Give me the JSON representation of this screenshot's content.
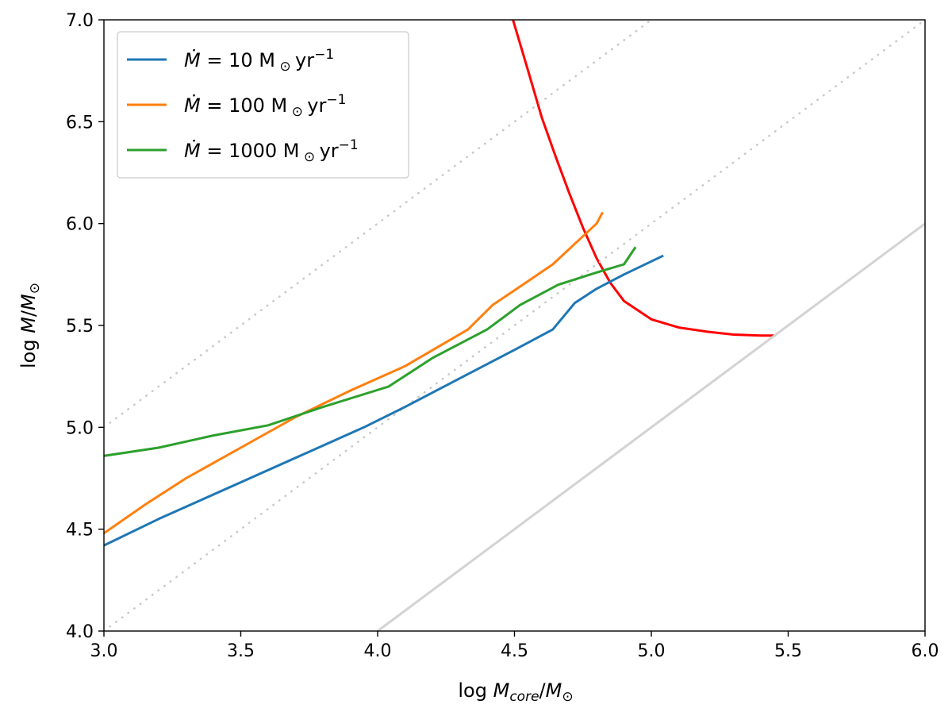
{
  "chart_data": {
    "type": "line",
    "xlabel": "log M_core/M_⊙",
    "ylabel": "log M/M_⊙",
    "xlim": [
      3.0,
      6.0
    ],
    "ylim": [
      4.0,
      7.0
    ],
    "xticks": [
      "3.0",
      "3.5",
      "4.0",
      "4.5",
      "5.0",
      "5.5",
      "6.0"
    ],
    "yticks": [
      "4.0",
      "4.5",
      "5.0",
      "5.5",
      "6.0",
      "6.5",
      "7.0"
    ],
    "legend_position": "top-left",
    "series": [
      {
        "name": "Ṁ = 10 M⊙ yr⁻¹",
        "legend": {
          "prefix": "= 10 M",
          "unit": "yr",
          "exp": "−1"
        },
        "color": "#1f77b4",
        "x": [
          3.0,
          3.2,
          3.5,
          3.75,
          3.95,
          4.1,
          4.3,
          4.5,
          4.64,
          4.72,
          4.8,
          4.9,
          5.04
        ],
        "y": [
          4.42,
          4.55,
          4.73,
          4.88,
          5.0,
          5.1,
          5.24,
          5.38,
          5.48,
          5.61,
          5.68,
          5.75,
          5.84
        ]
      },
      {
        "name": "Ṁ = 100 M⊙ yr⁻¹",
        "legend": {
          "prefix": "= 100 M",
          "unit": "yr",
          "exp": "−1"
        },
        "color": "#ff7f0e",
        "x": [
          3.0,
          3.15,
          3.3,
          3.5,
          3.7,
          3.9,
          4.1,
          4.33,
          4.42,
          4.53,
          4.64,
          4.72,
          4.8,
          4.82
        ],
        "y": [
          4.48,
          4.62,
          4.75,
          4.9,
          5.05,
          5.18,
          5.3,
          5.48,
          5.6,
          5.7,
          5.8,
          5.9,
          6.0,
          6.05
        ]
      },
      {
        "name": "Ṁ = 1000 M⊙ yr⁻¹",
        "legend": {
          "prefix": "= 1000 M",
          "unit": "yr",
          "exp": "−1"
        },
        "color": "#2ca02c",
        "x": [
          3.0,
          3.2,
          3.4,
          3.6,
          3.8,
          4.04,
          4.2,
          4.4,
          4.52,
          4.66,
          4.8,
          4.9,
          4.94
        ],
        "y": [
          4.86,
          4.9,
          4.96,
          5.01,
          5.1,
          5.2,
          5.34,
          5.48,
          5.6,
          5.7,
          5.76,
          5.8,
          5.88
        ]
      }
    ],
    "reference_lines": [
      {
        "name": "red-boundary-curve",
        "style": "solid",
        "color": "#ff0000",
        "x": [
          4.49,
          4.55,
          4.6,
          4.65,
          4.7,
          4.75,
          4.8,
          4.85,
          4.9,
          5.0,
          5.1,
          5.2,
          5.3,
          5.4,
          5.45
        ],
        "y": [
          7.02,
          6.75,
          6.52,
          6.33,
          6.15,
          5.98,
          5.83,
          5.71,
          5.62,
          5.53,
          5.49,
          5.47,
          5.455,
          5.45,
          5.45
        ]
      },
      {
        "name": "one-to-one-line",
        "style": "solid",
        "color": "#d3d3d3",
        "x": [
          4.0,
          6.0
        ],
        "y": [
          4.0,
          6.0
        ]
      },
      {
        "name": "dotted-line-offset-0",
        "style": "dotted",
        "color": "#c8c8c8",
        "x": [
          3.0,
          6.0
        ],
        "y": [
          4.0,
          7.0
        ]
      },
      {
        "name": "dotted-line-offset-1",
        "style": "dotted",
        "color": "#c8c8c8",
        "x": [
          3.0,
          5.0
        ],
        "y": [
          5.0,
          7.0
        ]
      }
    ]
  }
}
